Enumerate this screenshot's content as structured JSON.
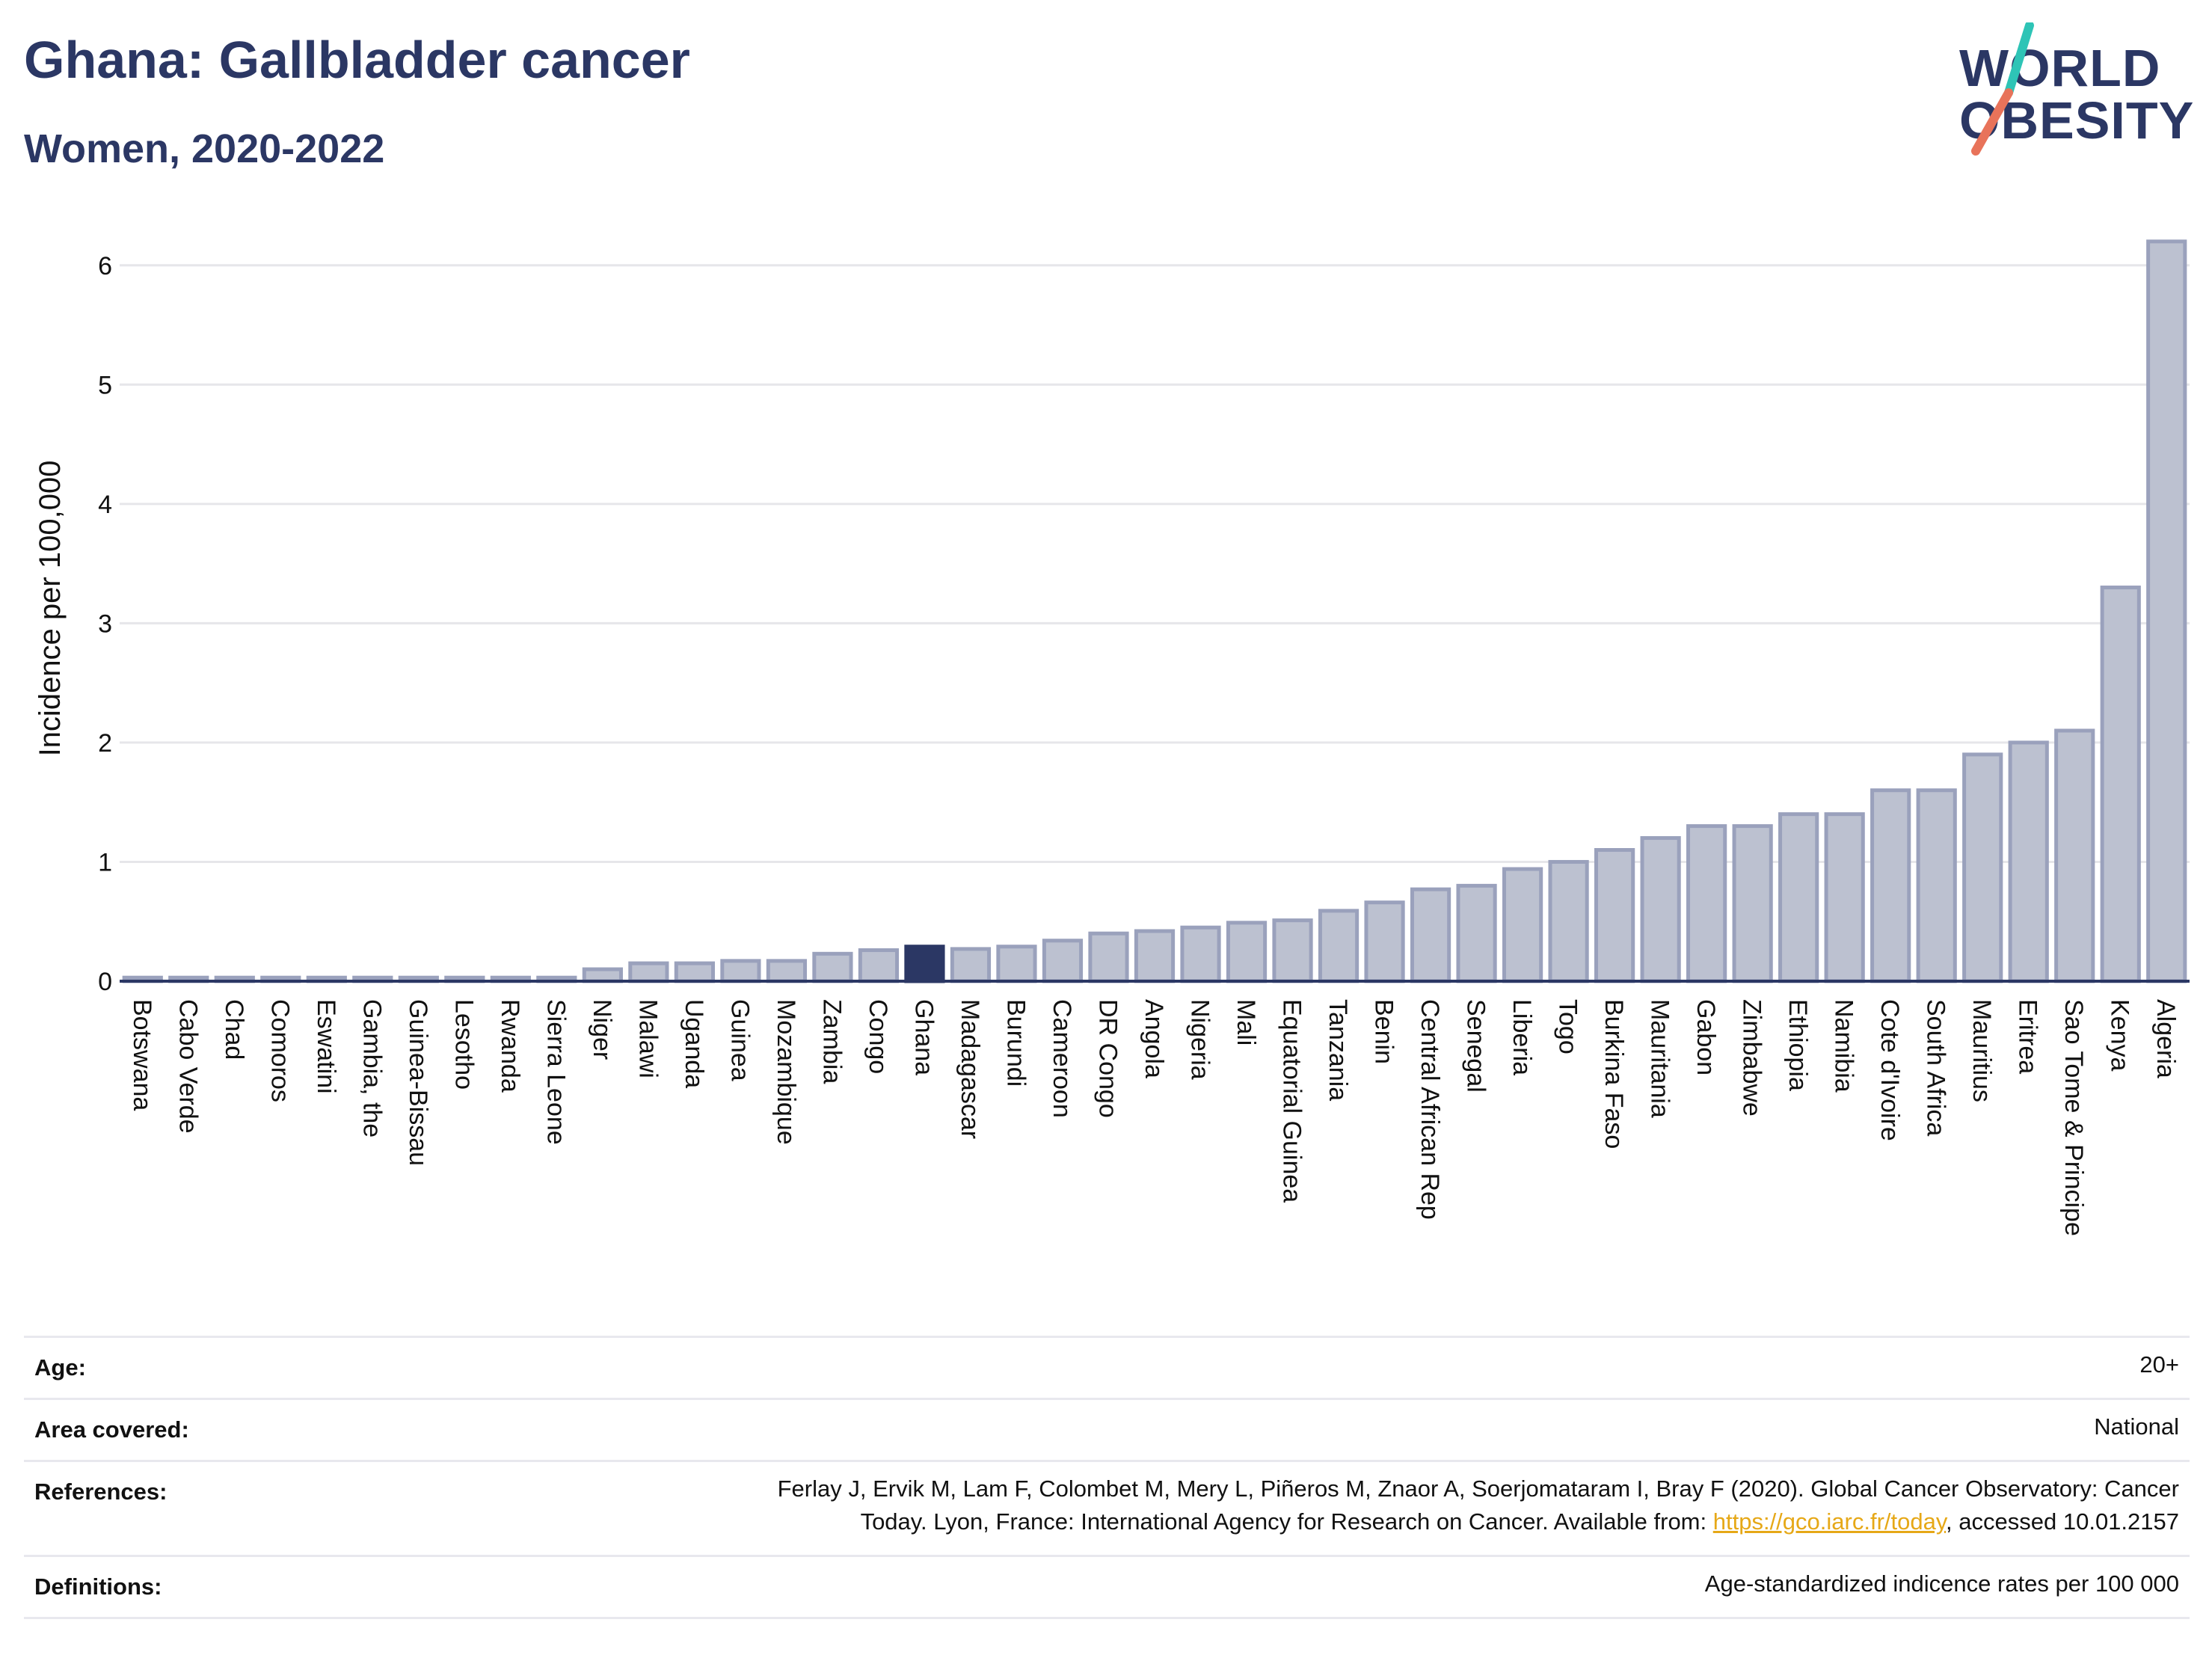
{
  "header": {
    "title": "Ghana: Gallbladder cancer",
    "subtitle": "Women, 2020-2022"
  },
  "logo": {
    "line1": "WORLD",
    "line2": "OBESITY",
    "slash_colors": [
      "#2ec4b6",
      "#e8735a"
    ],
    "text_color": "#2b3764"
  },
  "chart_data": {
    "type": "bar",
    "title": "Ghana: Gallbladder cancer",
    "subtitle": "Women, 2020-2022",
    "ylabel": "Incidence per 100,000",
    "xlabel": "",
    "ylim": [
      0,
      6.5
    ],
    "yticks": [
      0,
      1,
      2,
      3,
      4,
      5,
      6
    ],
    "grid": true,
    "highlight": "Ghana",
    "colors": {
      "bar": "#bcc1d0",
      "bar_border": "#9aa1bc",
      "highlight": "#2b3764",
      "axis": "#2b3764",
      "grid": "#e6e6ea"
    },
    "categories": [
      "Botswana",
      "Cabo Verde",
      "Chad",
      "Comoros",
      "Eswatini",
      "Gambia, the",
      "Guinea-Bissau",
      "Lesotho",
      "Rwanda",
      "Sierra Leone",
      "Niger",
      "Malawi",
      "Uganda",
      "Guinea",
      "Mozambique",
      "Zambia",
      "Congo",
      "Ghana",
      "Madagascar",
      "Burundi",
      "Cameroon",
      "DR Congo",
      "Angola",
      "Nigeria",
      "Mali",
      "Equatorial Guinea",
      "Tanzania",
      "Benin",
      "Central African Rep",
      "Senegal",
      "Liberia",
      "Togo",
      "Burkina Faso",
      "Mauritania",
      "Gabon",
      "Zimbabwe",
      "Ethiopia",
      "Namibia",
      "Cote d'Ivoire",
      "South Africa",
      "Mauritius",
      "Eritrea",
      "Sao Tome & Principe",
      "Kenya",
      "Algeria"
    ],
    "values": [
      0.03,
      0.03,
      0.03,
      0.03,
      0.03,
      0.03,
      0.03,
      0.03,
      0.03,
      0.03,
      0.1,
      0.15,
      0.15,
      0.17,
      0.17,
      0.23,
      0.26,
      0.29,
      0.27,
      0.29,
      0.34,
      0.4,
      0.42,
      0.45,
      0.49,
      0.51,
      0.59,
      0.66,
      0.77,
      0.8,
      0.94,
      1.0,
      1.1,
      1.2,
      1.3,
      1.3,
      1.4,
      1.4,
      1.6,
      1.6,
      1.9,
      2.0,
      2.1,
      3.3,
      6.2
    ]
  },
  "info": {
    "age_label": "Age:",
    "age_value": "20+",
    "area_label": "Area covered:",
    "area_value": "National",
    "references_label": "References:",
    "references_line1": "Ferlay J, Ervik M, Lam F, Colombet M, Mery L, Piñeros M, Znaor A, Soerjomataram I, Bray F (2020). Global Cancer Observatory: Cancer",
    "references_line2_prefix": "Today. Lyon, France: International Agency for Research on Cancer. Available from: ",
    "references_link": "https://gco.iarc.fr/today",
    "references_line2_suffix": ", accessed 10.01.2157",
    "definitions_label": "Definitions:",
    "definitions_value": "Age-standardized indicence rates per 100 000"
  }
}
